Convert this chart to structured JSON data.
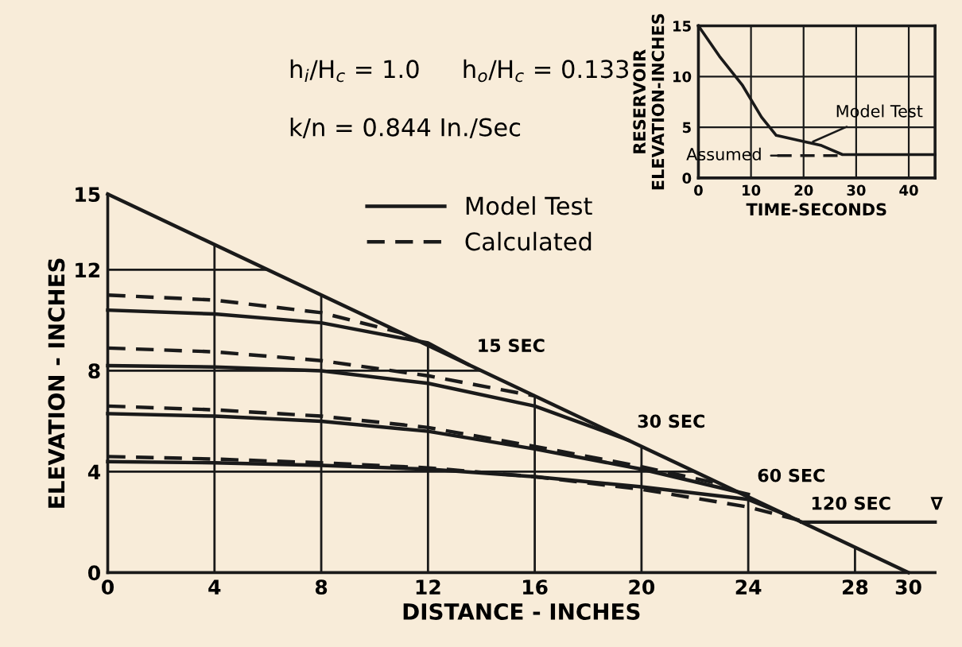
{
  "chart_data": [
    {
      "type": "line",
      "xlabel": "DISTANCE - INCHES",
      "ylabel": "ELEVATION - INCHES",
      "xlim": [
        0,
        31
      ],
      "ylim": [
        0,
        15
      ],
      "xticks": [
        0,
        4,
        8,
        12,
        16,
        20,
        24,
        28,
        30
      ],
      "yticks": [
        0,
        4,
        8,
        12,
        15
      ],
      "grid": true,
      "legend": "top",
      "line_style": "solid",
      "marker": "none",
      "series": [
        {
          "x": [
            0,
            30
          ],
          "values": [
            15,
            0
          ],
          "color": "#1a1a1a"
        },
        {
          "name": "Model Test",
          "x": [
            0,
            4,
            8,
            12,
            13.5
          ],
          "values": [
            10.4,
            10.25,
            9.9,
            9.1,
            8.25
          ],
          "color": "#1a1a1a"
        },
        {
          "name": "Calculated",
          "x": [
            0,
            4,
            8,
            11
          ],
          "values": [
            11.0,
            10.8,
            10.3,
            9.5
          ],
          "color": "#1a1a1a",
          "line_style": "dashed"
        },
        {
          "x": [
            0,
            4,
            8,
            12,
            16,
            19.5
          ],
          "values": [
            8.2,
            8.15,
            8.0,
            7.5,
            6.6,
            5.25
          ],
          "color": "#1a1a1a"
        },
        {
          "x": [
            0,
            4,
            8,
            12,
            16
          ],
          "values": [
            8.9,
            8.75,
            8.4,
            7.8,
            7.0
          ],
          "color": "#1a1a1a",
          "line_style": "dashed"
        },
        {
          "x": [
            0,
            4,
            8,
            12,
            16,
            20,
            24
          ],
          "values": [
            6.3,
            6.2,
            6.0,
            5.6,
            4.9,
            4.1,
            3.1
          ],
          "color": "#1a1a1a"
        },
        {
          "x": [
            0,
            4,
            8,
            12,
            16,
            20,
            23
          ],
          "values": [
            6.6,
            6.45,
            6.2,
            5.75,
            5.0,
            4.2,
            3.5
          ],
          "color": "#1a1a1a",
          "line_style": "dashed"
        },
        {
          "x": [
            0,
            4,
            8,
            12,
            16,
            20,
            24,
            25.5
          ],
          "values": [
            4.4,
            4.35,
            4.25,
            4.1,
            3.8,
            3.4,
            2.9,
            2.25
          ],
          "color": "#1a1a1a"
        },
        {
          "x": [
            0,
            4,
            8,
            12,
            16,
            20,
            24,
            26
          ],
          "values": [
            4.6,
            4.5,
            4.35,
            4.15,
            3.8,
            3.3,
            2.6,
            2.05
          ],
          "color": "#1a1a1a",
          "line_style": "dashed"
        },
        {
          "x": [
            26,
            31
          ],
          "values": [
            2.0,
            2.0
          ],
          "color": "#1a1a1a"
        }
      ],
      "annotations": [
        "h$_{i}$/H$_{c}$ = 1.0",
        "h$_{o}$/H$_{c}$ = 0.133",
        "k/n = 0.844 In./Sec",
        {
          "text": "15 SEC",
          "x": 13.5,
          "y": 8.25
        },
        {
          "text": "30 SEC",
          "x": 19.5,
          "y": 5.25
        },
        {
          "text": "60 SEC",
          "x": 24,
          "y": 3.1
        },
        {
          "text": "120 SEC",
          "x": 26,
          "y": 2.0
        },
        {
          "text": "∇",
          "x": 30.5,
          "y": 2.0
        }
      ]
    },
    {
      "type": "line",
      "xlabel": "TIME-SECONDS",
      "ylabel": "RESERVOIR\nELEVATION-INCHES",
      "xlim": [
        0,
        45
      ],
      "ylim": [
        0,
        15
      ],
      "xticks": [
        0,
        10,
        20,
        30,
        40
      ],
      "yticks": [
        0,
        5,
        10,
        15
      ],
      "grid": true,
      "line_style": "solid",
      "marker": "none",
      "series": [
        {
          "x": [
            0,
            4,
            8.3,
            12,
            14.8,
            20,
            23.4,
            27.4,
            45
          ],
          "values": [
            15,
            12,
            9.2,
            6,
            4.2,
            3.6,
            3.2,
            2.3,
            2.3
          ],
          "color": "#1a1a1a"
        },
        {
          "x": [
            15,
            27.4
          ],
          "values": [
            2.2,
            2.2
          ],
          "color": "#1a1a1a",
          "line_style": "dashed"
        }
      ],
      "annotations": [
        {
          "text": "Model Test",
          "x": 21,
          "y": 3.4
        },
        {
          "text": "Assumed",
          "x": 17,
          "y": 2.2
        }
      ]
    }
  ]
}
